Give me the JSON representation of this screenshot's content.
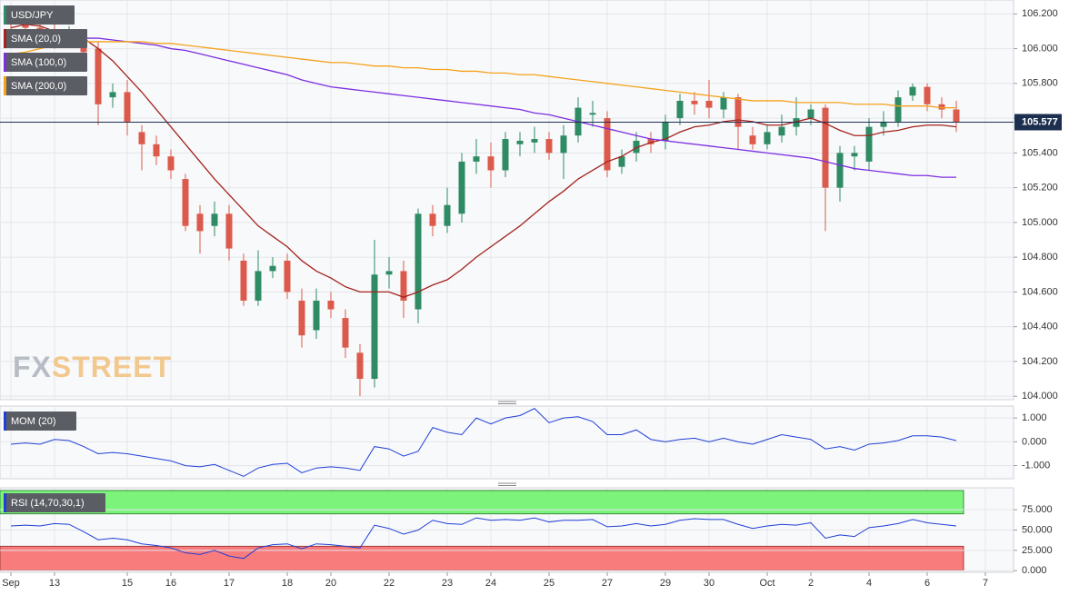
{
  "chart_data": [
    {
      "type": "candlestick",
      "title": "USD/JPY",
      "categories": [
        "Sep",
        null,
        null,
        "13",
        null,
        null,
        null,
        null,
        "15",
        null,
        null,
        "16",
        null,
        null,
        null,
        "17",
        null,
        null,
        null,
        "18",
        null,
        null,
        "20",
        null,
        null,
        null,
        "22",
        null,
        null,
        null,
        "23",
        null,
        null,
        "24",
        null,
        null,
        null,
        "25",
        null,
        null,
        null,
        "27",
        null,
        null,
        null,
        "29",
        null,
        null,
        "30",
        null,
        null,
        null,
        "Oct",
        null,
        null,
        "2",
        null,
        null,
        null,
        "4",
        null,
        null,
        null,
        "6",
        null,
        null,
        null,
        "7"
      ],
      "open": [
        106.18,
        106.15,
        106.12,
        106.1,
        106.05,
        106.07,
        106.0,
        105.72,
        105.75,
        105.52,
        105.45,
        105.38,
        105.25,
        105.05,
        104.98,
        105.05,
        104.78,
        104.55,
        104.72,
        104.78,
        104.55,
        104.38,
        104.55,
        104.45,
        104.25,
        104.1,
        104.7,
        104.72,
        104.5,
        105.05,
        104.98,
        105.05,
        105.35,
        105.38,
        105.3,
        105.45,
        105.46,
        105.48,
        105.4,
        105.5,
        105.62,
        105.6,
        105.32,
        105.4,
        105.48,
        105.47,
        105.6,
        105.7,
        105.7,
        105.65,
        105.72,
        105.5,
        105.45,
        105.5,
        105.55,
        105.6,
        105.66,
        105.2,
        105.38,
        105.35,
        105.55,
        105.58,
        105.73,
        105.78,
        105.68,
        105.65,
        null,
        null
      ],
      "high": [
        106.24,
        106.2,
        106.16,
        106.14,
        106.13,
        106.1,
        106.04,
        105.8,
        105.82,
        105.56,
        105.5,
        105.42,
        105.28,
        105.1,
        105.12,
        105.1,
        104.82,
        104.84,
        104.8,
        104.82,
        104.62,
        104.62,
        104.6,
        104.5,
        104.3,
        104.9,
        104.8,
        104.78,
        105.08,
        105.1,
        105.2,
        105.4,
        105.48,
        105.46,
        105.52,
        105.52,
        105.55,
        105.52,
        105.56,
        105.72,
        105.7,
        105.64,
        105.42,
        105.52,
        105.52,
        105.62,
        105.74,
        105.75,
        105.82,
        105.75,
        105.74,
        105.55,
        105.56,
        105.62,
        105.72,
        105.68,
        105.68,
        105.44,
        105.44,
        105.6,
        105.64,
        105.76,
        105.8,
        105.8,
        105.72,
        105.7,
        null,
        null
      ],
      "low": [
        106.1,
        106.08,
        106.04,
        106.0,
        106.02,
        105.92,
        105.56,
        105.66,
        105.5,
        105.3,
        105.33,
        105.25,
        104.95,
        104.82,
        104.92,
        104.78,
        104.52,
        104.52,
        104.68,
        104.56,
        104.28,
        104.33,
        104.45,
        104.22,
        104.0,
        104.05,
        104.62,
        104.45,
        104.42,
        104.92,
        104.94,
        105.0,
        105.28,
        105.2,
        105.26,
        105.38,
        105.4,
        105.36,
        105.25,
        105.46,
        105.55,
        105.26,
        105.28,
        105.35,
        105.4,
        105.42,
        105.56,
        105.62,
        105.6,
        105.6,
        105.42,
        105.42,
        105.42,
        105.46,
        105.5,
        105.56,
        104.95,
        105.12,
        105.3,
        105.3,
        105.5,
        105.55,
        105.7,
        105.64,
        105.6,
        105.52,
        null,
        null
      ],
      "close": [
        106.15,
        106.12,
        106.08,
        106.05,
        106.1,
        105.98,
        105.68,
        105.75,
        105.58,
        105.45,
        105.38,
        105.3,
        104.98,
        104.95,
        105.05,
        104.85,
        104.55,
        104.72,
        104.75,
        104.6,
        104.35,
        104.55,
        104.5,
        104.28,
        104.1,
        104.7,
        104.72,
        104.55,
        105.05,
        104.98,
        105.1,
        105.35,
        105.38,
        105.3,
        105.48,
        105.47,
        105.48,
        105.4,
        105.5,
        105.66,
        105.63,
        105.3,
        105.38,
        105.47,
        105.45,
        105.58,
        105.7,
        105.68,
        105.66,
        105.72,
        105.55,
        105.45,
        105.52,
        105.55,
        105.6,
        105.65,
        105.2,
        105.4,
        105.4,
        105.55,
        105.58,
        105.72,
        105.78,
        105.68,
        105.65,
        105.58,
        null,
        null
      ],
      "up_color": "#2e8b64",
      "down_color": "#dc5a4b",
      "series": [
        {
          "name": "SMA (20,0)",
          "color": "#a3231d",
          "values": [
            106.12,
            106.14,
            106.13,
            106.1,
            106.08,
            106.06,
            106.0,
            105.93,
            105.84,
            105.75,
            105.65,
            105.55,
            105.45,
            105.35,
            105.25,
            105.16,
            105.07,
            104.98,
            104.92,
            104.86,
            104.78,
            104.72,
            104.68,
            104.63,
            104.6,
            104.6,
            104.6,
            104.57,
            104.6,
            104.64,
            104.67,
            104.73,
            104.8,
            104.86,
            104.92,
            104.98,
            105.05,
            105.12,
            105.18,
            105.25,
            105.3,
            105.35,
            105.38,
            105.43,
            105.46,
            105.48,
            105.52,
            105.55,
            105.56,
            105.58,
            105.59,
            105.58,
            105.56,
            105.56,
            105.58,
            105.6,
            105.57,
            105.53,
            105.5,
            105.5,
            105.52,
            105.53,
            105.55,
            105.56,
            105.56,
            105.55,
            null,
            null
          ]
        },
        {
          "name": "SMA (100,0)",
          "color": "#7b2ee0",
          "values": [
            106.08,
            106.08,
            106.07,
            106.07,
            106.07,
            106.06,
            106.06,
            106.05,
            106.04,
            106.03,
            106.02,
            106.0,
            105.99,
            105.97,
            105.95,
            105.93,
            105.91,
            105.89,
            105.87,
            105.85,
            105.82,
            105.8,
            105.78,
            105.77,
            105.76,
            105.75,
            105.74,
            105.73,
            105.72,
            105.71,
            105.7,
            105.69,
            105.68,
            105.67,
            105.66,
            105.65,
            105.63,
            105.62,
            105.6,
            105.58,
            105.56,
            105.54,
            105.52,
            105.5,
            105.48,
            105.47,
            105.46,
            105.45,
            105.44,
            105.43,
            105.42,
            105.41,
            105.4,
            105.39,
            105.38,
            105.37,
            105.35,
            105.33,
            105.31,
            105.3,
            105.29,
            105.28,
            105.27,
            105.27,
            105.26,
            105.26,
            null,
            null
          ]
        },
        {
          "name": "SMA (200,0)",
          "color": "#f5a21b",
          "values": [
            105.97,
            105.98,
            106.0,
            106.02,
            106.03,
            106.04,
            106.04,
            106.04,
            106.04,
            106.04,
            106.03,
            106.03,
            106.02,
            106.01,
            106.0,
            105.99,
            105.98,
            105.97,
            105.96,
            105.95,
            105.94,
            105.93,
            105.92,
            105.92,
            105.91,
            105.9,
            105.9,
            105.89,
            105.89,
            105.88,
            105.88,
            105.87,
            105.87,
            105.86,
            105.86,
            105.85,
            105.85,
            105.84,
            105.83,
            105.82,
            105.81,
            105.8,
            105.79,
            105.78,
            105.77,
            105.76,
            105.75,
            105.74,
            105.73,
            105.72,
            105.71,
            105.7,
            105.7,
            105.7,
            105.69,
            105.69,
            105.69,
            105.69,
            105.68,
            105.68,
            105.68,
            105.67,
            105.67,
            105.67,
            105.66,
            105.66,
            null,
            null
          ]
        }
      ],
      "ylim": [
        103.98,
        106.28
      ],
      "yticks": [
        {
          "value": 104.0,
          "label": "104.000"
        },
        {
          "value": 104.2,
          "label": "104.200"
        },
        {
          "value": 104.4,
          "label": "104.400"
        },
        {
          "value": 104.6,
          "label": "104.600"
        },
        {
          "value": 104.8,
          "label": "104.800"
        },
        {
          "value": 105.0,
          "label": "105.000"
        },
        {
          "value": 105.2,
          "label": "105.200"
        },
        {
          "value": 105.4,
          "label": "105.400"
        },
        {
          "value": 105.6,
          "label": "105.600"
        },
        {
          "value": 105.8,
          "label": "105.800"
        },
        {
          "value": 106.0,
          "label": "106.000"
        },
        {
          "value": 106.2,
          "label": "106.200"
        }
      ],
      "last_price": {
        "value": 105.577,
        "label": "105.577"
      },
      "watermark": [
        "FX",
        "STREET"
      ],
      "grid": true
    },
    {
      "type": "line",
      "title": "MOM (20)",
      "color": "#1f3fd6",
      "values": [
        -0.1,
        -0.05,
        -0.1,
        0.1,
        0.05,
        -0.2,
        -0.5,
        -0.45,
        -0.5,
        -0.6,
        -0.7,
        -0.8,
        -1.0,
        -1.05,
        -0.95,
        -1.2,
        -1.45,
        -1.1,
        -0.95,
        -0.9,
        -1.3,
        -1.1,
        -1.05,
        -1.1,
        -1.2,
        -0.2,
        -0.3,
        -0.6,
        -0.4,
        0.6,
        0.4,
        0.3,
        1.0,
        0.75,
        1.0,
        1.1,
        1.4,
        0.8,
        1.0,
        1.05,
        0.85,
        0.3,
        0.3,
        0.5,
        0.1,
        0.0,
        0.1,
        0.15,
        0.0,
        0.15,
        0.0,
        -0.1,
        0.1,
        0.3,
        0.2,
        0.1,
        -0.3,
        -0.2,
        -0.35,
        -0.1,
        -0.05,
        0.05,
        0.25,
        0.25,
        0.2,
        0.05,
        null,
        null
      ],
      "ylim": [
        -1.55,
        1.5
      ],
      "yticks": [
        {
          "value": -1,
          "label": "-1.000"
        },
        {
          "value": 0,
          "label": "0.000"
        },
        {
          "value": 1,
          "label": "1.000"
        }
      ],
      "grid": true
    },
    {
      "type": "line",
      "title": "RSI (14,70,30,1)",
      "color": "#1f3fd6",
      "values": [
        55,
        56,
        55,
        58,
        57,
        48,
        38,
        40,
        38,
        33,
        31,
        28,
        22,
        20,
        25,
        18,
        15,
        28,
        32,
        33,
        27,
        33,
        32,
        30,
        28,
        56,
        52,
        45,
        50,
        62,
        58,
        57,
        65,
        62,
        63,
        62,
        65,
        60,
        62,
        62,
        63,
        54,
        55,
        58,
        55,
        57,
        62,
        64,
        63,
        63,
        57,
        52,
        55,
        57,
        56,
        59,
        40,
        44,
        42,
        53,
        55,
        58,
        63,
        59,
        57,
        55,
        null,
        null
      ],
      "ylim": [
        -2,
        102
      ],
      "yticks": [
        {
          "value": 0,
          "label": "0.000"
        },
        {
          "value": 25,
          "label": "25.000"
        },
        {
          "value": 50,
          "label": "50.000"
        },
        {
          "value": 75,
          "label": "75.000"
        }
      ],
      "overbought": 70,
      "oversold": 30,
      "overbought_color": "#7cf47c",
      "oversold_color": "#f87c7c",
      "grid": true
    }
  ]
}
